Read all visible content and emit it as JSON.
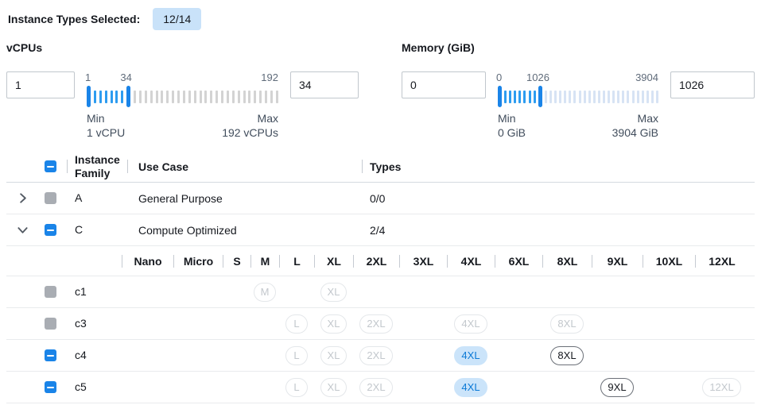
{
  "header": {
    "label": "Instance Types Selected:",
    "badge": "12/14"
  },
  "filters": [
    {
      "id": "vcpus",
      "title": "vCPUs",
      "from_value": "1",
      "to_value": "34",
      "scale_min": "1",
      "scale_mid": "34",
      "scale_max": "192",
      "min_caption": "Min",
      "min_detail": "1 vCPU",
      "max_caption": "Max",
      "max_detail": "192 vCPUs",
      "total_ticks": 35,
      "handle1": 0,
      "handle2": 7,
      "inactive_tick_color": "#d3d3d3"
    },
    {
      "id": "memory",
      "title": "Memory (GiB)",
      "from_value": "0",
      "to_value": "1026",
      "scale_min": "0",
      "scale_mid": "1026",
      "scale_max": "3904",
      "min_caption": "Min",
      "min_detail": "0 GiB",
      "max_caption": "Max",
      "max_detail": "3904 GiB",
      "total_ticks": 33,
      "handle1": 0,
      "handle2": 8,
      "inactive_tick_color": "#d7e3f4"
    }
  ],
  "table": {
    "columns": {
      "family": "Instance Family",
      "use_case": "Use Case",
      "types": "Types"
    },
    "header_checkbox": "indeterminate",
    "family_rows": [
      {
        "name": "A",
        "chevron": "right",
        "checkbox": "disabled",
        "use_case": "General Purpose",
        "types": "0/0",
        "expanded": false
      },
      {
        "name": "C",
        "chevron": "down",
        "checkbox": "indeterminate",
        "use_case": "Compute Optimized",
        "types": "2/4",
        "expanded": true
      }
    ],
    "size_columns": [
      "Nano",
      "Micro",
      "S",
      "M",
      "L",
      "XL",
      "2XL",
      "3XL",
      "4XL",
      "6XL",
      "8XL",
      "9XL",
      "10XL",
      "12XL"
    ],
    "size_rows": [
      {
        "name": "c1",
        "checkbox": "disabled",
        "badges": {
          "M": "disabled",
          "XL": "disabled"
        }
      },
      {
        "name": "c3",
        "checkbox": "disabled",
        "badges": {
          "L": "disabled",
          "XL": "disabled",
          "2XL": "disabled",
          "4XL": "disabled",
          "8XL": "disabled"
        }
      },
      {
        "name": "c4",
        "checkbox": "indeterminate",
        "badges": {
          "L": "disabled",
          "XL": "disabled",
          "2XL": "disabled",
          "4XL": "selected",
          "8XL": "enabled"
        }
      },
      {
        "name": "c5",
        "checkbox": "indeterminate",
        "badges": {
          "L": "disabled",
          "XL": "disabled",
          "2XL": "disabled",
          "4XL": "selected",
          "9XL": "enabled",
          "12XL": "disabled"
        }
      }
    ]
  },
  "colors": {
    "accent_blue": "#1a84e8",
    "active_tick": "#2d9cf0",
    "selected_badge_bg": "#cbe4fa",
    "selected_badge_text": "#0b79d6",
    "top_badge_bg": "#c9e2f9"
  }
}
